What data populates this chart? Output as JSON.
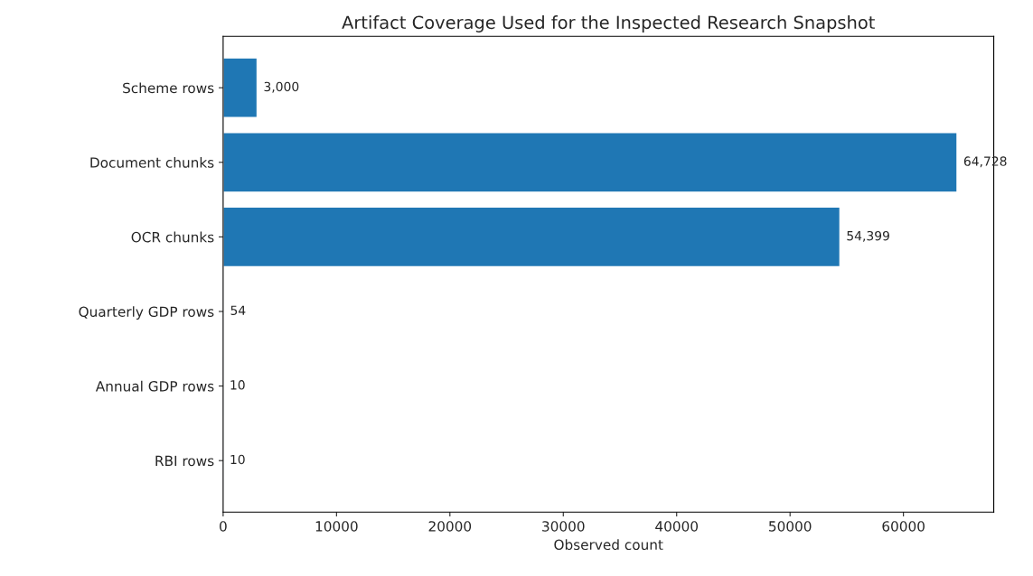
{
  "chart_data": {
    "type": "bar",
    "orientation": "horizontal",
    "title": "Artifact Coverage Used for the Inspected Research Snapshot",
    "xlabel": "Observed count",
    "categories": [
      "Scheme rows",
      "Document chunks",
      "OCR chunks",
      "Quarterly GDP rows",
      "Annual GDP rows",
      "RBI rows"
    ],
    "values": [
      3000,
      64728,
      54399,
      54,
      10,
      10
    ],
    "value_labels": [
      "3,000",
      "64,728",
      "54,399",
      "54",
      "10",
      "10"
    ],
    "color": "#1f77b4",
    "xlim": [
      0,
      67964
    ],
    "xticks": [
      0,
      10000,
      20000,
      30000,
      40000,
      50000,
      60000
    ],
    "grid": false,
    "legend": false
  }
}
